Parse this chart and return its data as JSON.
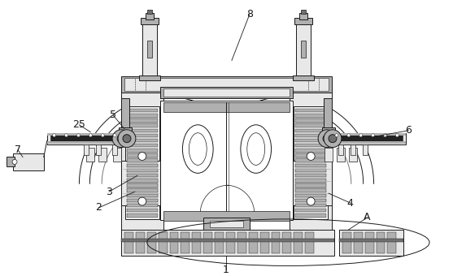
{
  "bg_color": "#ffffff",
  "line_color": "#1a1a1a",
  "gray_light": "#d4d4d4",
  "gray_mid": "#b0b0b0",
  "gray_dark": "#707070",
  "gray_fill": "#e8e8e8",
  "fig_width": 5.57,
  "fig_height": 3.4,
  "dpi": 100
}
